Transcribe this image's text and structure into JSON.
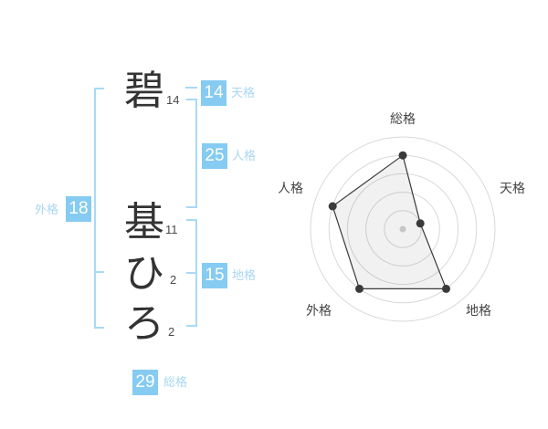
{
  "name_panel": {
    "characters": [
      {
        "char": "碧",
        "strokes": "14"
      },
      {
        "char": "基",
        "strokes": "11"
      },
      {
        "char": "ひ",
        "strokes": "2"
      },
      {
        "char": "ろ",
        "strokes": "2"
      }
    ],
    "badges": {
      "tenkaku": {
        "value": "14",
        "label": "天格"
      },
      "jinkaku": {
        "value": "25",
        "label": "人格"
      },
      "chikaku": {
        "value": "15",
        "label": "地格"
      },
      "gaikaku": {
        "value": "18",
        "label": "外格"
      },
      "soukaku": {
        "value": "29",
        "label": "総格"
      }
    }
  },
  "colors": {
    "badge_blue": "#85cbf2",
    "badge_label_blue": "#a9d7f2",
    "bracket_blue": "#a9d9f7",
    "chart_line": "#3a3a3a",
    "chart_ring": "#d9d9d9",
    "chart_fill": "rgba(0,0,0,0.055)",
    "chart_center_dot": "#c6c6c6",
    "chart_label": "#444444"
  },
  "chart_data": {
    "type": "radar",
    "categories": [
      "総格",
      "天格",
      "地格",
      "外格",
      "人格"
    ],
    "values": [
      4,
      1,
      4,
      4,
      4
    ],
    "max": 5,
    "rings": 5,
    "grid": "circular",
    "legend_position": "none",
    "title": ""
  }
}
